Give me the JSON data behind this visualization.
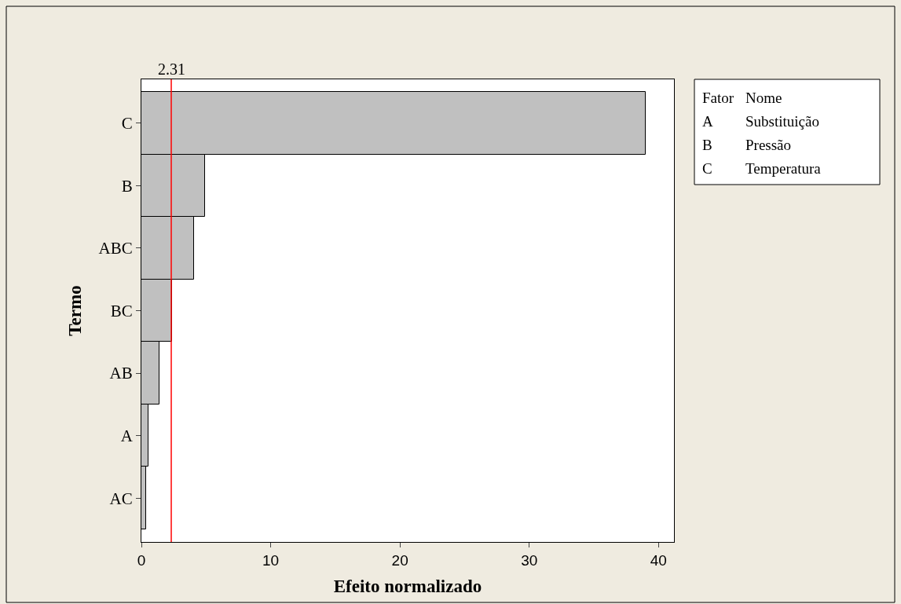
{
  "chart_data": {
    "type": "bar",
    "orientation": "horizontal",
    "xlabel": "Efeito normalizado",
    "ylabel": "Termo",
    "categories": [
      "C",
      "B",
      "ABC",
      "BC",
      "AB",
      "A",
      "AC"
    ],
    "values": [
      39.0,
      4.9,
      4.07,
      2.37,
      1.4,
      0.55,
      0.36
    ],
    "color": "#c0c0c0",
    "xlim": [
      0,
      41.2
    ],
    "xticks": [
      0,
      10,
      20,
      30,
      40
    ],
    "ref_lines": [
      {
        "axis": "x",
        "value": 2.31,
        "label": "2.31",
        "color": "#ff0000"
      }
    ],
    "annotations": [
      "Fator",
      "Nome",
      "A",
      "Substituição",
      "B",
      "Pressão",
      "C",
      "Temperatura"
    ]
  }
}
